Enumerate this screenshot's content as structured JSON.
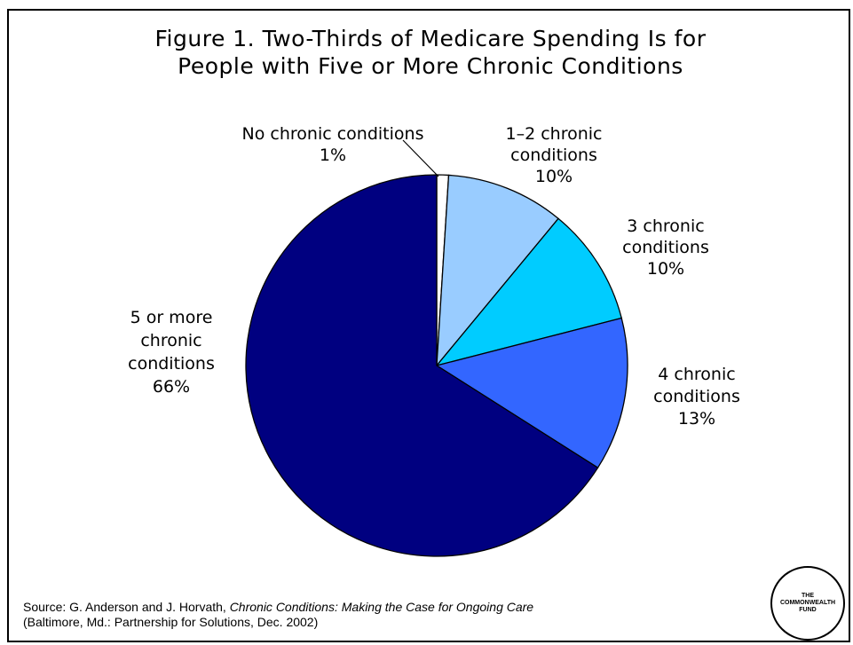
{
  "chart_data": {
    "type": "pie",
    "title_lines": [
      "Figure 1. Two-Thirds of Medicare Spending Is for",
      "People with Five or More Chronic Conditions"
    ],
    "slices": [
      {
        "label_lines": [
          "No chronic conditions",
          "1%"
        ],
        "value": 1,
        "color": "#ffffff"
      },
      {
        "label_lines": [
          "1–2 chronic",
          "conditions",
          "10%"
        ],
        "value": 10,
        "color": "#99ccff"
      },
      {
        "label_lines": [
          "3 chronic",
          "conditions",
          "10%"
        ],
        "value": 10,
        "color": "#00ccff"
      },
      {
        "label_lines": [
          "4 chronic",
          "conditions",
          "13%"
        ],
        "value": 13,
        "color": "#3366ff"
      },
      {
        "label_lines": [
          "5 or more",
          "chronic",
          "conditions",
          "66%"
        ],
        "value": 66,
        "color": "#000080"
      }
    ],
    "legend": "none"
  },
  "source": {
    "prefix": "Source: G. Anderson and J. Horvath, ",
    "title": "Chronic Conditions: Making the Case for Ongoing Care",
    "line2": "(Baltimore, Md.: Partnership for Solutions, Dec. 2002)"
  },
  "logo": {
    "lines": [
      "THE",
      "COMMONWEALTH",
      "FUND"
    ]
  }
}
